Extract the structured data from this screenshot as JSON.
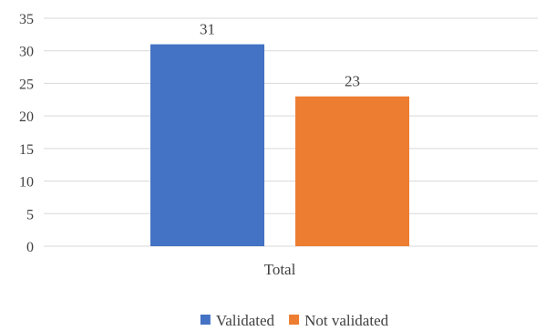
{
  "chart_data": {
    "type": "bar",
    "title": "",
    "xlabel": "",
    "ylabel": "",
    "categories": [
      "Total"
    ],
    "series": [
      {
        "name": "Validated",
        "values": [
          31
        ],
        "color": "#4472c4"
      },
      {
        "name": "Not validated",
        "values": [
          23
        ],
        "color": "#ed7d31"
      }
    ],
    "ylim": [
      0,
      35
    ],
    "yticks": [
      0,
      5,
      10,
      15,
      20,
      25,
      30,
      35
    ],
    "grid": true,
    "legend": "bottom",
    "data_labels": true
  }
}
